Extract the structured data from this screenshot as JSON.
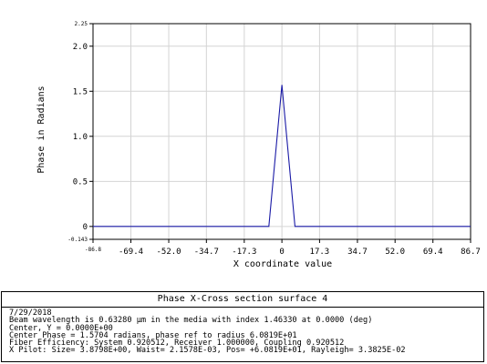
{
  "chart_data": {
    "type": "line",
    "title": "Phase X-Cross section surface 4",
    "xlabel": "X coordinate value",
    "ylabel": "Phase in Radians",
    "xlim": [
      -86.8,
      86.7
    ],
    "ylim": [
      -0.143,
      2.25
    ],
    "x_ticks": [
      "-86.8",
      "-69.4",
      "-52.0",
      "-34.7",
      "-17.3",
      "0",
      "17.3",
      "34.7",
      "52.0",
      "69.4",
      "86.7"
    ],
    "x_tick_values": [
      -86.8,
      -69.4,
      -52.0,
      -34.7,
      -17.3,
      0,
      17.3,
      34.7,
      52.0,
      69.4,
      86.7
    ],
    "y_ticks": [
      "-0.143",
      "0",
      "0.5",
      "1.0",
      "1.5",
      "2.0",
      "2.25"
    ],
    "y_tick_values": [
      -0.143,
      0,
      0.5,
      1.0,
      1.5,
      2.0,
      2.25
    ],
    "grid": true,
    "series": [
      {
        "color": "#1a1aa6",
        "x": [
          -86.8,
          -6.0,
          0.0,
          6.0,
          86.7
        ],
        "y": [
          0,
          0,
          1.5704,
          0,
          0
        ]
      }
    ]
  },
  "info": {
    "lines": [
      "7/29/2018",
      "Beam wavelength is 0.63280 µm in the media with index 1.46330 at 0.0000 (deg)",
      "Center, Y = 0.0000E+00",
      "Center Phase = 1.5704 radians, phase ref to radius 6.0819E+01",
      "Fiber Efficiency: System 0.920512, Receiver 1.000000, Coupling 0.920512",
      "X Pilot: Size= 3.8798E+00, Waist= 2.1578E-03, Pos= +6.0819E+01, Rayleigh= 3.3825E-02"
    ]
  }
}
